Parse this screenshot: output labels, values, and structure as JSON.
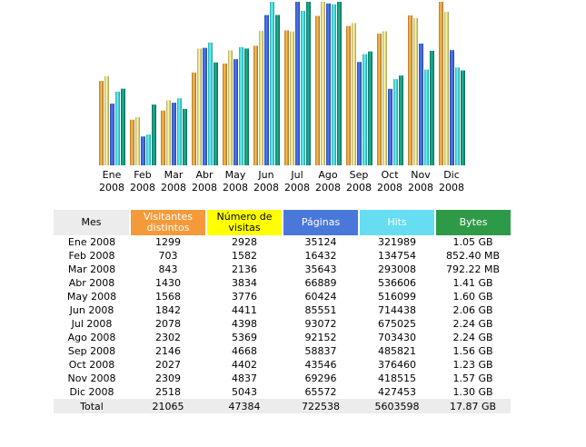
{
  "chart_data": {
    "type": "bar",
    "title": "",
    "categories": [
      "Ene",
      "Feb",
      "Mar",
      "Abr",
      "May",
      "Jun",
      "Jul",
      "Ago",
      "Sep",
      "Oct",
      "Nov",
      "Dic"
    ],
    "years": [
      "2008",
      "2008",
      "2008",
      "2008",
      "2008",
      "2008",
      "2008",
      "2008",
      "2008",
      "2008",
      "2008",
      "2008"
    ],
    "series": [
      {
        "name": "Visitantes distintos",
        "color": "#e99a3c",
        "values": [
          1299,
          703,
          843,
          1430,
          1568,
          1842,
          2078,
          2302,
          2146,
          2027,
          2309,
          2518
        ]
      },
      {
        "name": "Número de visitas",
        "color": "#ecd783",
        "values": [
          2928,
          1582,
          2136,
          3834,
          3776,
          4411,
          4398,
          5369,
          4668,
          4402,
          4837,
          5043
        ]
      },
      {
        "name": "Páginas",
        "color": "#3c63d6",
        "values": [
          35124,
          16432,
          35643,
          66889,
          60424,
          85551,
          93072,
          92152,
          58837,
          43546,
          69296,
          65572
        ]
      },
      {
        "name": "Hits",
        "color": "#47d2dc",
        "values": [
          321989,
          134754,
          293008,
          536606,
          516099,
          714438,
          675025,
          703430,
          485821,
          376460,
          418515,
          427453
        ]
      },
      {
        "name": "Bytes",
        "color": "#15937a",
        "values": [
          1.05,
          0.8324,
          0.7736,
          1.41,
          1.6,
          2.06,
          2.24,
          2.24,
          1.56,
          1.23,
          1.57,
          1.3
        ],
        "unit": "GB"
      }
    ],
    "scales": {
      "visitors": [
        0,
        2518
      ],
      "visits": [
        0,
        5369
      ],
      "pages": [
        0,
        93072
      ],
      "hits": [
        0,
        714438
      ],
      "bytes": [
        0,
        2.24
      ]
    },
    "legend": "none",
    "grid": false
  },
  "table": {
    "headers": {
      "mes": "Mes",
      "visitantes": "Visitantes distintos",
      "numero_visitas": "Número de visitas",
      "paginas": "Páginas",
      "hits": "Hits",
      "bytes": "Bytes"
    },
    "rows": [
      {
        "mes": "Ene 2008",
        "visitantes": "1299",
        "visitas": "2928",
        "paginas": "35124",
        "hits": "321989",
        "bytes": "1.05 GB"
      },
      {
        "mes": "Feb 2008",
        "visitantes": "703",
        "visitas": "1582",
        "paginas": "16432",
        "hits": "134754",
        "bytes": "852.40 MB"
      },
      {
        "mes": "Mar 2008",
        "visitantes": "843",
        "visitas": "2136",
        "paginas": "35643",
        "hits": "293008",
        "bytes": "792.22 MB"
      },
      {
        "mes": "Abr 2008",
        "visitantes": "1430",
        "visitas": "3834",
        "paginas": "66889",
        "hits": "536606",
        "bytes": "1.41 GB"
      },
      {
        "mes": "May 2008",
        "visitantes": "1568",
        "visitas": "3776",
        "paginas": "60424",
        "hits": "516099",
        "bytes": "1.60 GB"
      },
      {
        "mes": "Jun 2008",
        "visitantes": "1842",
        "visitas": "4411",
        "paginas": "85551",
        "hits": "714438",
        "bytes": "2.06 GB"
      },
      {
        "mes": "Jul 2008",
        "visitantes": "2078",
        "visitas": "4398",
        "paginas": "93072",
        "hits": "675025",
        "bytes": "2.24 GB"
      },
      {
        "mes": "Ago 2008",
        "visitantes": "2302",
        "visitas": "5369",
        "paginas": "92152",
        "hits": "703430",
        "bytes": "2.24 GB"
      },
      {
        "mes": "Sep 2008",
        "visitantes": "2146",
        "visitas": "4668",
        "paginas": "58837",
        "hits": "485821",
        "bytes": "1.56 GB"
      },
      {
        "mes": "Oct 2008",
        "visitantes": "2027",
        "visitas": "4402",
        "paginas": "43546",
        "hits": "376460",
        "bytes": "1.23 GB"
      },
      {
        "mes": "Nov 2008",
        "visitantes": "2309",
        "visitas": "4837",
        "paginas": "69296",
        "hits": "418515",
        "bytes": "1.57 GB"
      },
      {
        "mes": "Dic 2008",
        "visitantes": "2518",
        "visitas": "5043",
        "paginas": "65572",
        "hits": "427453",
        "bytes": "1.30 GB"
      }
    ],
    "total": {
      "mes": "Total",
      "visitantes": "21065",
      "visitas": "47384",
      "paginas": "722538",
      "hits": "5603598",
      "bytes": "17.87 GB"
    }
  }
}
